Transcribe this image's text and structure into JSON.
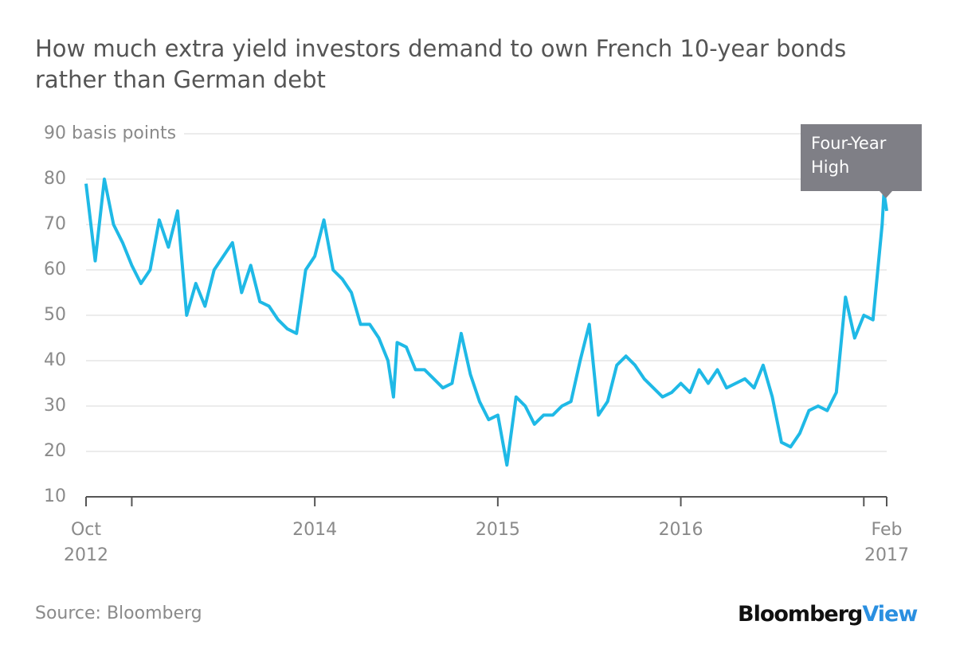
{
  "chart_data": {
    "type": "line",
    "title": "How much extra yield investors demand to own French 10-year bonds rather than German debt",
    "source": "Source: Bloomberg",
    "logo": {
      "brand": "Bloomberg",
      "product": "View"
    },
    "annotation": "Four-Year High",
    "xlim": [
      2012.75,
      2017.125
    ],
    "xticks": [
      {
        "value": 2012.75,
        "label": "Oct 2012"
      },
      2014,
      2015,
      2016,
      {
        "value": 2017.125,
        "label": "Feb 2017"
      }
    ],
    "xminorticks": [
      2013,
      2017
    ],
    "ylim": [
      10,
      90
    ],
    "yticks": [
      10,
      20,
      30,
      40,
      50,
      60,
      70,
      80,
      {
        "value": 90,
        "label": "90 basis points"
      }
    ],
    "grid": true,
    "series": [
      {
        "color": "#1fb9e6",
        "x": [
          2012.75,
          2012.8,
          2012.85,
          2012.9,
          2012.95,
          2013.0,
          2013.05,
          2013.1,
          2013.15,
          2013.2,
          2013.25,
          2013.3,
          2013.35,
          2013.4,
          2013.45,
          2013.5,
          2013.55,
          2013.6,
          2013.65,
          2013.7,
          2013.75,
          2013.8,
          2013.85,
          2013.9,
          2013.95,
          2014.0,
          2014.05,
          2014.1,
          2014.15,
          2014.2,
          2014.25,
          2014.3,
          2014.35,
          2014.4,
          2014.43,
          2014.45,
          2014.5,
          2014.55,
          2014.6,
          2014.65,
          2014.7,
          2014.75,
          2014.8,
          2014.85,
          2014.9,
          2014.95,
          2015.0,
          2015.05,
          2015.1,
          2015.15,
          2015.2,
          2015.25,
          2015.3,
          2015.35,
          2015.4,
          2015.45,
          2015.5,
          2015.55,
          2015.6,
          2015.65,
          2015.7,
          2015.75,
          2015.8,
          2015.85,
          2015.9,
          2015.95,
          2016.0,
          2016.05,
          2016.1,
          2016.15,
          2016.2,
          2016.25,
          2016.3,
          2016.35,
          2016.4,
          2016.45,
          2016.5,
          2016.55,
          2016.6,
          2016.65,
          2016.7,
          2016.75,
          2016.8,
          2016.85,
          2016.9,
          2016.95,
          2017.0,
          2017.05,
          2017.1,
          2017.11,
          2017.125
        ],
        "values": [
          79,
          62,
          80,
          70,
          66,
          61,
          57,
          60,
          71,
          65,
          73,
          50,
          57,
          52,
          60,
          63,
          66,
          55,
          61,
          53,
          52,
          49,
          47,
          46,
          60,
          63,
          71,
          60,
          58,
          55,
          48,
          48,
          45,
          40,
          32,
          44,
          43,
          38,
          38,
          36,
          34,
          35,
          46,
          37,
          31,
          27,
          28,
          17,
          32,
          30,
          26,
          28,
          28,
          30,
          31,
          40,
          48,
          28,
          31,
          39,
          41,
          39,
          36,
          34,
          32,
          33,
          35,
          33,
          38,
          35,
          38,
          34,
          35,
          36,
          34,
          39,
          32,
          22,
          21,
          24,
          29,
          30,
          29,
          33,
          54,
          45,
          50,
          49,
          70,
          77,
          73
        ]
      }
    ]
  }
}
